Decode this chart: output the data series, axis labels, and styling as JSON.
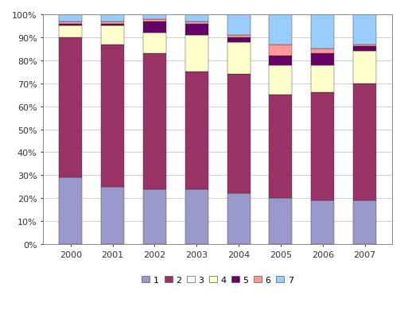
{
  "years": [
    "2000",
    "2001",
    "2002",
    "2003",
    "2004",
    "2005",
    "2006",
    "2007"
  ],
  "segments": {
    "1": [
      29,
      25,
      24,
      24,
      22,
      20,
      19,
      19
    ],
    "2": [
      61,
      62,
      59,
      51,
      52,
      45,
      47,
      51
    ],
    "3": [
      0,
      0,
      0,
      0,
      0,
      0,
      0,
      0
    ],
    "4": [
      5,
      8,
      9,
      16,
      14,
      13,
      12,
      14
    ],
    "5": [
      1,
      1,
      5,
      5,
      2,
      4,
      5,
      2
    ],
    "6": [
      1,
      1,
      1,
      1,
      1,
      5,
      2,
      1
    ],
    "7": [
      3,
      3,
      2,
      3,
      9,
      13,
      15,
      13
    ]
  },
  "colors": {
    "1": "#9999cc",
    "2": "#993366",
    "3": "#ffffff",
    "4": "#ffffcc",
    "5": "#660066",
    "6": "#ff9999",
    "7": "#99ccff"
  },
  "legend_labels": [
    "1",
    "2",
    "3",
    "4",
    "5",
    "6",
    "7"
  ],
  "ylim": [
    0,
    100
  ],
  "yticks": [
    0,
    10,
    20,
    30,
    40,
    50,
    60,
    70,
    80,
    90,
    100
  ],
  "ytick_labels": [
    "0%",
    "10%",
    "20%",
    "30%",
    "40%",
    "50%",
    "60%",
    "70%",
    "80%",
    "90%",
    "100%"
  ],
  "bar_width": 0.55,
  "background_color": "#ffffff",
  "grid_color": "#bbbbbb",
  "spine_color": "#888888",
  "tick_fontsize": 8,
  "legend_fontsize": 8
}
